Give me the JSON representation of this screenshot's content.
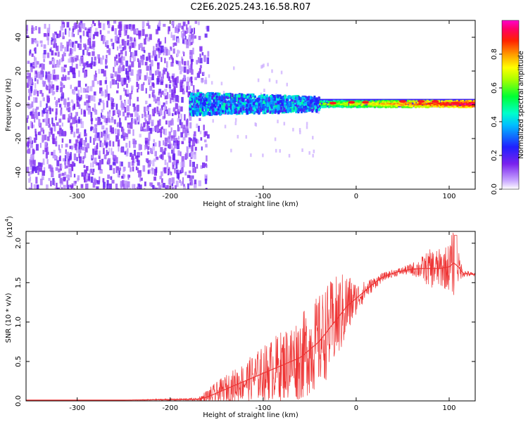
{
  "figure_title": "C2E6.2025.243.16.58.R07",
  "colors": {
    "background": "#ffffff",
    "axis": "#000000",
    "snr_line": "#ee3333",
    "noise_purple": "#7a22ee",
    "noise_light": "#d9b8ff"
  },
  "chart_data": [
    {
      "type": "heatmap",
      "name": "spectrogram",
      "title": "",
      "xlabel": "Height of straight line (km)",
      "ylabel": "Frequency (Hz)",
      "xlim": [
        -355,
        128
      ],
      "ylim": [
        -50,
        50
      ],
      "x_ticks": [
        -300,
        -200,
        -100,
        0,
        100
      ],
      "y_ticks": [
        -40,
        -20,
        0,
        20,
        40
      ],
      "x_tick_labels": [
        "-300",
        "-200",
        "-100",
        "0",
        "100"
      ],
      "y_tick_labels": [
        "-40",
        "-20",
        "0",
        "20",
        "40"
      ],
      "colorbar": {
        "label": "Normalized spectral amplitude",
        "range": [
          0.0,
          1.0
        ],
        "ticks": [
          0.0,
          0.2,
          0.4,
          0.6,
          0.8
        ],
        "tick_labels": [
          "0.0",
          "0.2",
          "0.4",
          "0.6",
          "0.8"
        ],
        "colormap": "rainbow (purple → blue → cyan → green → yellow → orange → red → magenta)"
      },
      "regions": [
        {
          "x_range": [
            -355,
            -160
          ],
          "freq_range": [
            -50,
            50
          ],
          "amplitude": 0.1,
          "description": "broadband noise"
        },
        {
          "x_range": [
            -180,
            -40
          ],
          "freq_range": [
            -5,
            8
          ],
          "amplitude": 0.35,
          "description": "signal band onset"
        },
        {
          "x_range": [
            -40,
            128
          ],
          "freq_range": [
            -2,
            4
          ],
          "amplitude": 0.85,
          "description": "strong narrow signal near 0-2 Hz"
        }
      ]
    },
    {
      "type": "line",
      "name": "snr",
      "title": "",
      "xlabel": "Height of straight line (km)",
      "ylabel": "SNR (10 * v/v)",
      "y_multiplier_label": "(x10",
      "y_multiplier_exp": "4",
      "y_multiplier_close": ")",
      "xlim": [
        -355,
        128
      ],
      "ylim": [
        0,
        2.15
      ],
      "x_ticks": [
        -300,
        -200,
        -100,
        0,
        100
      ],
      "y_ticks": [
        0.0,
        0.5,
        1.0,
        1.5,
        2.0
      ],
      "x_tick_labels": [
        "-300",
        "-200",
        "-100",
        "0",
        "100"
      ],
      "y_tick_labels": [
        "0.0",
        "0.5",
        "1.0",
        "1.5",
        "2.0"
      ],
      "series": [
        {
          "name": "SNR",
          "x": [
            -355,
            -250,
            -170,
            -160,
            -140,
            -120,
            -100,
            -80,
            -60,
            -40,
            -30,
            -20,
            -10,
            0,
            10,
            20,
            30,
            40,
            50,
            60,
            70,
            80,
            90,
            100,
            105,
            110,
            115,
            128
          ],
          "y": [
            0.01,
            0.01,
            0.02,
            0.05,
            0.15,
            0.25,
            0.35,
            0.45,
            0.55,
            0.75,
            0.9,
            1.05,
            1.2,
            1.3,
            1.4,
            1.5,
            1.58,
            1.62,
            1.65,
            1.67,
            1.68,
            1.68,
            1.68,
            1.7,
            1.75,
            1.7,
            1.62,
            1.6
          ],
          "noise_envelope": [
            0.0,
            0.0,
            0.02,
            0.1,
            0.18,
            0.25,
            0.35,
            0.45,
            0.55,
            0.6,
            0.6,
            0.55,
            0.45,
            0.2,
            0.12,
            0.08,
            0.05,
            0.05,
            0.05,
            0.08,
            0.15,
            0.25,
            0.25,
            0.3,
            0.45,
            0.2,
            0.05,
            0.02
          ],
          "peak": {
            "x": 107,
            "y": 2.1
          }
        }
      ]
    }
  ]
}
